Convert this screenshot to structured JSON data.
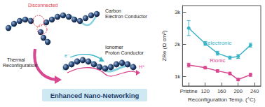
{
  "chart_data": {
    "type": "line",
    "x_label": "Reconfiguration Temp. (°C)",
    "y_label": "ZRe (Ω cm²)",
    "xlim": [
      65,
      255
    ],
    "xticks": [
      {
        "value": 80,
        "label": "Pristine"
      },
      120,
      160,
      200,
      240
    ],
    "ylim": [
      700,
      3200
    ],
    "yticks": [
      {
        "value": 1000,
        "label": "1k"
      },
      {
        "value": 2000,
        "label": "2k"
      },
      {
        "value": 3000,
        "label": "3k"
      }
    ],
    "grid": false,
    "series": [
      {
        "name": "Relectronic",
        "color": "#3bb4c8",
        "marker": "circle",
        "line_style": "solid",
        "x": [
          80,
          120,
          150,
          180,
          200,
          230
        ],
        "values": [
          2500,
          2020,
          1720,
          1580,
          1620,
          1970
        ],
        "errors": [
          230,
          60,
          60,
          50,
          60,
          60
        ]
      },
      {
        "name": "Rionic",
        "color": "#d8478f",
        "marker": "circle",
        "line_style": "solid",
        "x": [
          80,
          120,
          150,
          180,
          200,
          230
        ],
        "values": [
          1350,
          1270,
          1170,
          1090,
          900,
          1050
        ],
        "errors": [
          60,
          40,
          40,
          40,
          40,
          50
        ]
      }
    ]
  },
  "diagram": {
    "disconnected": "Disconnected",
    "carbon": [
      "Carbon",
      "Electron Conductor"
    ],
    "ionomer": [
      "Ionomer",
      "Proton Conductor"
    ],
    "proton": "H⁺",
    "electron": "e⁻",
    "process": [
      "Thermal",
      "Reconfiguration"
    ],
    "banner": "Enhanced Nano-Networking"
  }
}
